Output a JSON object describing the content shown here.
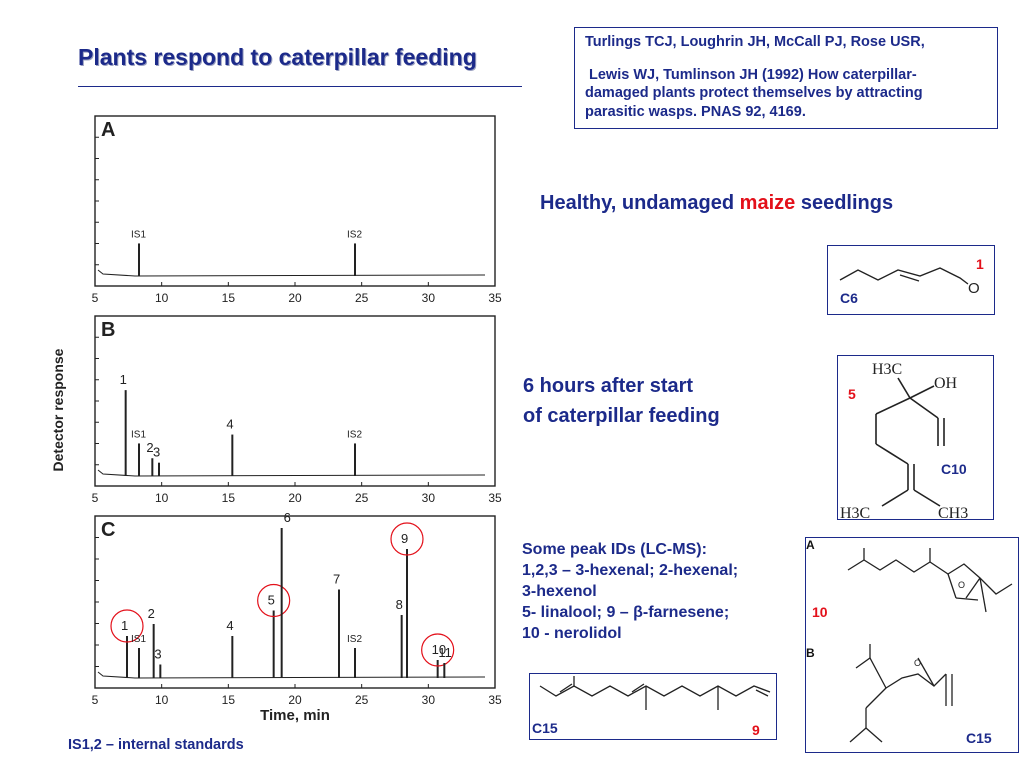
{
  "slide": {
    "title": "Plants respond to caterpillar feeding",
    "reference": [
      "Turlings TCJ, Loughrin JH, McCall PJ, Rose USR,",
      "Lewis WJ, Tumlinson JH (1992) How caterpillar-",
      "damaged plants protect themselves by attracting",
      "parasitic wasps. PNAS 92, 4169."
    ],
    "healthy": {
      "before": "Healthy, undamaged ",
      "highlight": "maize",
      "after": " seedlings"
    },
    "feeding": [
      "6 hours after start",
      "of caterpillar feeding"
    ],
    "peak_ids": [
      "Some peak IDs (LC-MS):",
      "1,2,3 – 3-hexenal; 2-hexenal;",
      "3-hexenol",
      "5- linalool; 9 – β-farnesene;",
      "10 - nerolidol"
    ],
    "footnote": "IS1,2 – internal standards",
    "colors": {
      "title": "#1c2a8a",
      "highlight": "#e3101a",
      "circle": "#e3101a"
    }
  },
  "structures": {
    "hexenal": {
      "number": "1",
      "label": "C6",
      "atom": "O"
    },
    "linalool": {
      "number": "5",
      "label": "C10",
      "atoms": [
        "H3C",
        "OH",
        "H3C",
        "CH3"
      ]
    },
    "farnesene": {
      "number": "9",
      "label": "C15"
    },
    "nerolidol": {
      "number": "10",
      "label": "C15",
      "panel_labels": [
        "A",
        "B"
      ],
      "atoms": [
        "O",
        "O"
      ]
    }
  },
  "chart_data": {
    "type": "line",
    "ylabel": "Detector response",
    "xlabel": "Time, min",
    "x_ticks": [
      5,
      10,
      15,
      20,
      25,
      30,
      35
    ],
    "xlim": [
      5,
      35
    ],
    "panels": [
      {
        "label": "A",
        "peaks": [
          {
            "x": 8.3,
            "height": 0.22,
            "label": "IS1"
          },
          {
            "x": 24.5,
            "height": 0.22,
            "label": "IS2"
          }
        ]
      },
      {
        "label": "B",
        "peaks": [
          {
            "x": 7.3,
            "height": 0.58,
            "label": "1"
          },
          {
            "x": 8.3,
            "height": 0.22,
            "label": "IS1"
          },
          {
            "x": 9.3,
            "height": 0.12,
            "label": "2"
          },
          {
            "x": 9.8,
            "height": 0.09,
            "label": "3"
          },
          {
            "x": 15.3,
            "height": 0.28,
            "label": "4"
          },
          {
            "x": 24.5,
            "height": 0.22,
            "label": "IS2"
          }
        ]
      },
      {
        "label": "C",
        "peaks": [
          {
            "x": 7.4,
            "height": 0.28,
            "label": "1",
            "circled": true
          },
          {
            "x": 8.3,
            "height": 0.2,
            "label": "IS1"
          },
          {
            "x": 9.4,
            "height": 0.36,
            "label": "2"
          },
          {
            "x": 9.9,
            "height": 0.09,
            "label": "3"
          },
          {
            "x": 15.3,
            "height": 0.28,
            "label": "4"
          },
          {
            "x": 18.4,
            "height": 0.45,
            "label": "5",
            "circled": true
          },
          {
            "x": 19.0,
            "height": 1.0,
            "label": "6"
          },
          {
            "x": 23.3,
            "height": 0.59,
            "label": "7"
          },
          {
            "x": 24.5,
            "height": 0.2,
            "label": "IS2"
          },
          {
            "x": 28.0,
            "height": 0.42,
            "label": "8"
          },
          {
            "x": 28.4,
            "height": 0.86,
            "label": "9",
            "circled": true
          },
          {
            "x": 30.7,
            "height": 0.12,
            "label": "10",
            "circled": true
          },
          {
            "x": 31.2,
            "height": 0.1,
            "label": "11"
          }
        ]
      }
    ]
  }
}
